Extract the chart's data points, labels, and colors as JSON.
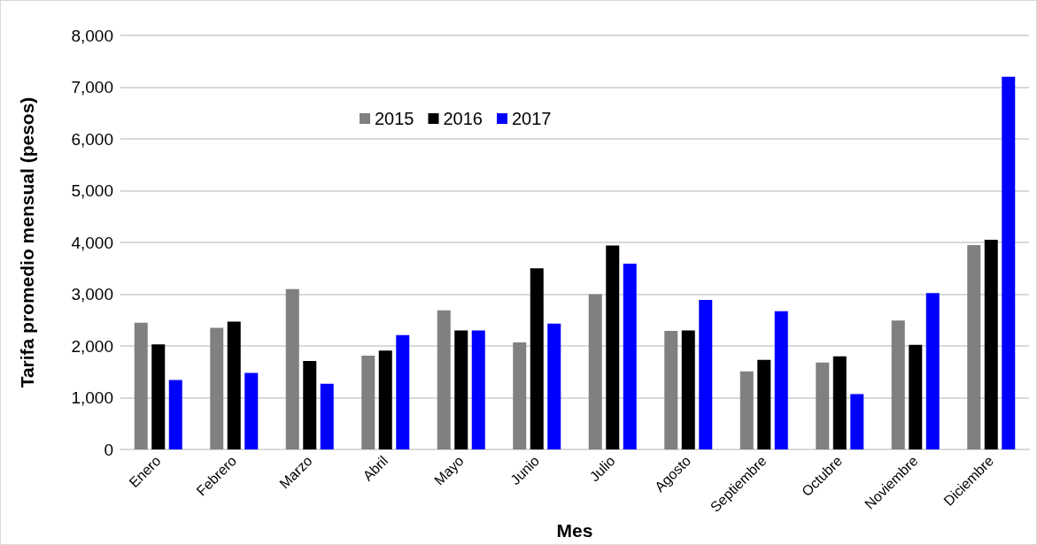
{
  "chart_data": {
    "type": "bar",
    "xlabel": "Mes",
    "ylabel": "Tarifa promedio mensual (pesos)",
    "categories": [
      "Enero",
      "Febrero",
      "Marzo",
      "Abril",
      "Mayo",
      "Junio",
      "Julio",
      "Agosto",
      "Septiembre",
      "Octubre",
      "Noviembre",
      "Diciembre"
    ],
    "series": [
      {
        "name": "2015",
        "color": "#808080",
        "values": [
          2450,
          2350,
          3100,
          1810,
          2690,
          2070,
          3000,
          2290,
          1510,
          1680,
          2490,
          3950
        ]
      },
      {
        "name": "2016",
        "color": "#000000",
        "values": [
          2030,
          2470,
          1710,
          1910,
          2300,
          3500,
          3940,
          2300,
          1730,
          1800,
          2020,
          4050
        ]
      },
      {
        "name": "2017",
        "color": "#0000ff",
        "values": [
          1340,
          1480,
          1270,
          2210,
          2300,
          2430,
          3590,
          2890,
          2670,
          1070,
          3020,
          7200
        ]
      }
    ],
    "ylim": [
      0,
      8000
    ],
    "yticks": [
      0,
      {
        "value": 1000,
        "label": "1,000"
      },
      {
        "value": 2000,
        "label": "2,000"
      },
      {
        "value": 3000,
        "label": "3,000"
      },
      {
        "value": 4000,
        "label": "4,000"
      },
      {
        "value": 5000,
        "label": "5,000"
      },
      {
        "value": 6000,
        "label": "6,000"
      },
      {
        "value": 7000,
        "label": "7,000"
      },
      {
        "value": 8000,
        "label": "8,000"
      }
    ],
    "grid": "y",
    "legend": "top"
  }
}
